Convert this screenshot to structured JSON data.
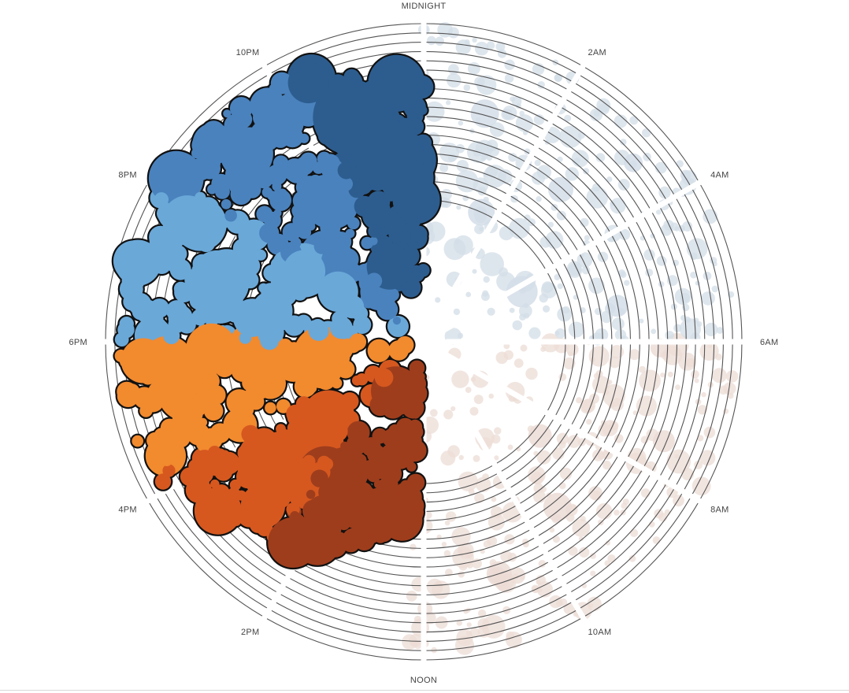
{
  "chart_data": {
    "type": "scatter",
    "subtype": "radial-clock-bubble",
    "title": "",
    "angular_axis": {
      "unit": "hour of day",
      "labels": [
        {
          "text": "MIDNIGHT",
          "hour": 0
        },
        {
          "text": "2AM",
          "hour": 2
        },
        {
          "text": "4AM",
          "hour": 4
        },
        {
          "text": "6AM",
          "hour": 6
        },
        {
          "text": "8AM",
          "hour": 8
        },
        {
          "text": "10AM",
          "hour": 10
        },
        {
          "text": "NOON",
          "hour": 12
        },
        {
          "text": "2PM",
          "hour": 14
        },
        {
          "text": "4PM",
          "hour": 16
        },
        {
          "text": "6PM",
          "hour": 18
        },
        {
          "text": "8PM",
          "hour": 20
        },
        {
          "text": "10PM",
          "hour": 22
        }
      ]
    },
    "radial_rings": 20,
    "highlighted_range": {
      "start_hour": 12.2,
      "end_hour": 24
    },
    "series": [
      {
        "hour_range": [
          0,
          6
        ],
        "color": "#d3dde7",
        "highlighted": false
      },
      {
        "hour_range": [
          6,
          12
        ],
        "color": "#ecdcd6",
        "highlighted": false
      },
      {
        "hour_range": [
          12,
          14.5
        ],
        "color": "#9e3d1c",
        "highlighted": true
      },
      {
        "hour_range": [
          14.5,
          16.3
        ],
        "color": "#d6581f",
        "highlighted": true
      },
      {
        "hour_range": [
          16.3,
          18
        ],
        "color": "#f28a2e",
        "highlighted": true
      },
      {
        "hour_range": [
          18,
          20.2
        ],
        "color": "#6aa8d8",
        "highlighted": true
      },
      {
        "hour_range": [
          20.2,
          22.3
        ],
        "color": "#4a82bd",
        "highlighted": true
      },
      {
        "hour_range": [
          22.3,
          24
        ],
        "color": "#2d5d8f",
        "highlighted": true
      }
    ],
    "grid": true,
    "legend": "none"
  }
}
